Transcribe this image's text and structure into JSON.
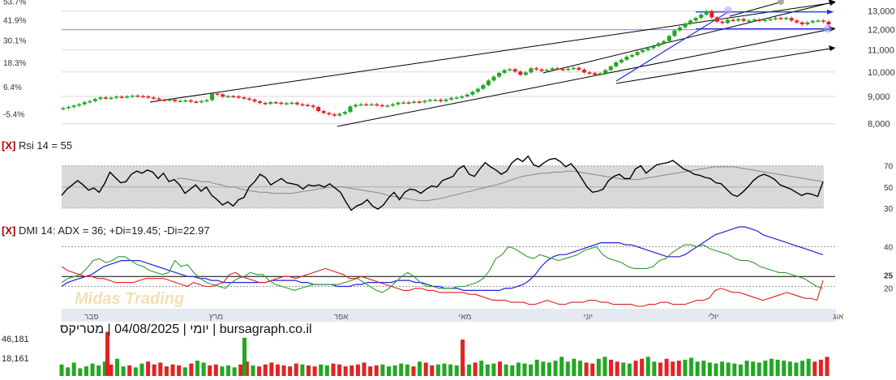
{
  "caption": "יומי | 04/08/2025 | מטריקס | bursagraph.co.il",
  "watermark": "Midas Trading",
  "rsi_panel": {
    "close": "[X]",
    "label": "Rsi 14 = 55"
  },
  "dmi_panel": {
    "close": "[X]",
    "label": "DMI 14: ADX = 36; +Di=19.45; -Di=22.97"
  },
  "volume_labels": [
    "46,181",
    "18,161"
  ],
  "colors": {
    "up": "#22a722",
    "down": "#e32222",
    "adx": "#2222dd",
    "plus_di": "#2a9d2a",
    "minus_di": "#e01e1e",
    "rsi": "#000000",
    "rsi_avg": "#888888",
    "trend": "#000000",
    "channel": "#2233dd"
  },
  "chart_data": [
    {
      "type": "candlestick",
      "title": "",
      "ylabel": "",
      "y_scale": "log",
      "ylim": [
        7800,
        13400
      ],
      "y_ticks_right": [
        "13,000",
        "12,000",
        "11,000",
        "10,000",
        "9,000",
        "8,000"
      ],
      "y_ticks_left": [
        "53.7%",
        "41.9%",
        "30.1%",
        "18.3%",
        "6.4%",
        "-5.4%"
      ],
      "x_labels": [
        "פבר",
        "מרץ",
        "אפר",
        "מאי",
        "יוני",
        "יולי",
        "אוג"
      ],
      "grid": true,
      "closes": [
        8560,
        8600,
        8650,
        8700,
        8780,
        8820,
        8900,
        8960,
        8920,
        8950,
        8990,
        8970,
        9000,
        9030,
        9010,
        9000,
        8960,
        8920,
        8870,
        8860,
        8880,
        8820,
        8830,
        8850,
        8800,
        8780,
        8820,
        8860,
        9110,
        9080,
        8990,
        9010,
        9000,
        8960,
        8920,
        8880,
        8810,
        8750,
        8720,
        8780,
        8760,
        8720,
        8740,
        8760,
        8700,
        8680,
        8650,
        8600,
        8450,
        8380,
        8330,
        8290,
        8350,
        8420,
        8620,
        8680,
        8700,
        8690,
        8700,
        8670,
        8640,
        8650,
        8700,
        8760,
        8770,
        8760,
        8800,
        8780,
        8830,
        8870,
        8870,
        8820,
        8880,
        8940,
        8960,
        9000,
        9070,
        9180,
        9300,
        9450,
        9640,
        9800,
        9960,
        10080,
        10120,
        10020,
        9880,
        9980,
        10160,
        10110,
        10040,
        10090,
        10160,
        10130,
        10090,
        10140,
        10180,
        10100,
        9980,
        9950,
        9880,
        9940,
        10080,
        10240,
        10420,
        10540,
        10680,
        10760,
        10900,
        10990,
        11080,
        11180,
        11320,
        11420,
        11680,
        11960,
        12120,
        12320,
        12480,
        12620,
        12800,
        13000,
        12650,
        12420,
        12350,
        12520,
        12480,
        12560,
        12460,
        12480,
        12540,
        12460,
        12520,
        12560,
        12620,
        12580,
        12620,
        12480,
        12380,
        12280,
        12380,
        12460,
        12480,
        12420,
        12280
      ],
      "trendlines": [
        {
          "from": [
            "פבר",
            8950
          ],
          "to": [
            "אוג",
            13450
          ]
        },
        {
          "from": [
            "אפר",
            7950
          ],
          "to": [
            "אוג",
            12500
          ]
        },
        {
          "from": [
            "יוני",
            10350
          ],
          "to": [
            "אוג",
            13800
          ]
        },
        {
          "from": [
            "יוני",
            9800
          ],
          "to": [
            "אוג",
            11450
          ]
        }
      ],
      "channel": {
        "upper": 12950,
        "lower": 12050
      }
    },
    {
      "type": "line",
      "title": "Rsi 14 = 55",
      "ylim": [
        20,
        85
      ],
      "y_ticks": [
        70,
        50,
        30
      ],
      "series": [
        {
          "name": "Rsi 14",
          "values": [
            42,
            48,
            52,
            56,
            52,
            47,
            49,
            45,
            53,
            64,
            59,
            54,
            55,
            62,
            65,
            63,
            66,
            64,
            58,
            63,
            55,
            57,
            52,
            44,
            48,
            52,
            46,
            50,
            42,
            38,
            33,
            36,
            32,
            38,
            40,
            50,
            55,
            62,
            59,
            52,
            55,
            58,
            54,
            53,
            52,
            48,
            52,
            51,
            52,
            50,
            53,
            49,
            45,
            36,
            28,
            32,
            34,
            38,
            32,
            29,
            33,
            40,
            45,
            38,
            45,
            48,
            47,
            44,
            48,
            51,
            50,
            56,
            58,
            60,
            67,
            70,
            62,
            60,
            67,
            73,
            69,
            66,
            62,
            65,
            73,
            77,
            74,
            79,
            71,
            69,
            73,
            76,
            77,
            74,
            69,
            72,
            66,
            58,
            50,
            45,
            46,
            48,
            56,
            60,
            62,
            58,
            58,
            67,
            70,
            63,
            67,
            71,
            72,
            73,
            75,
            71,
            67,
            65,
            62,
            61,
            59,
            58,
            54,
            53,
            48,
            43,
            41,
            45,
            50,
            56,
            60,
            62,
            60,
            57,
            52,
            50,
            48,
            45,
            42,
            44,
            43,
            41,
            55
          ]
        },
        {
          "name": "Avg",
          "values": [
            null,
            null,
            null,
            null,
            null,
            null,
            null,
            null,
            null,
            null,
            null,
            null,
            null,
            null,
            null,
            null,
            null,
            null,
            58,
            58,
            57,
            56,
            55,
            55,
            53,
            52,
            50,
            50,
            48,
            47,
            46,
            45,
            45,
            44,
            44,
            44,
            44,
            45,
            46,
            47,
            48,
            49,
            50,
            50,
            50,
            49,
            48,
            47,
            46,
            45,
            44,
            42,
            41,
            40,
            39,
            38,
            37,
            37,
            38,
            39,
            40,
            42,
            43,
            45,
            46,
            48,
            49,
            51,
            52,
            54,
            56,
            58,
            60,
            61,
            62,
            63,
            63,
            64,
            64,
            65,
            65,
            64,
            63,
            62,
            61,
            60,
            59,
            58,
            57,
            57,
            57,
            58,
            59,
            60,
            61,
            62,
            63,
            64,
            65,
            66,
            67,
            68,
            69,
            69,
            69,
            69,
            68,
            67,
            66,
            65,
            64,
            63,
            62,
            61,
            60,
            59,
            58,
            57,
            56,
            55
          ]
        }
      ]
    },
    {
      "type": "line",
      "title": "DMI 14: ADX = 36; +Di=19.45; -Di=22.97",
      "ylim": [
        10,
        50
      ],
      "y_ticks": [
        40,
        25,
        20
      ],
      "series": [
        {
          "name": "ADX",
          "values": [
            20,
            22,
            23,
            24,
            25,
            26,
            28,
            30,
            31,
            32,
            33,
            33,
            33,
            33,
            32,
            31,
            30,
            29,
            28,
            27,
            26,
            25,
            25,
            24,
            24,
            23,
            23,
            22,
            22,
            22,
            22,
            22,
            22,
            22,
            22,
            23,
            23,
            23,
            23,
            23,
            22,
            22,
            21,
            21,
            21,
            21,
            20,
            20,
            20,
            21,
            21,
            22,
            22,
            22,
            22,
            22,
            23,
            23,
            23,
            22,
            22,
            21,
            20,
            20,
            19,
            19,
            19,
            18,
            18,
            18,
            18,
            18,
            18,
            18,
            19,
            19,
            20,
            21,
            23,
            26,
            30,
            33,
            35,
            36,
            36,
            37,
            38,
            39,
            40,
            41,
            42,
            42,
            42,
            42,
            41,
            41,
            40,
            39,
            38,
            37,
            36,
            35,
            35,
            35,
            36,
            38,
            40,
            42,
            44,
            46,
            47,
            48,
            49,
            50,
            50,
            49,
            48,
            46,
            45,
            44,
            43,
            42,
            41,
            40,
            39,
            38,
            37,
            36
          ]
        },
        {
          "name": "+Di",
          "values": [
            22,
            24,
            25,
            26,
            29,
            33,
            34,
            32,
            33,
            35,
            35,
            33,
            31,
            30,
            28,
            27,
            26,
            27,
            33,
            30,
            31,
            27,
            24,
            22,
            21,
            20,
            19,
            22,
            24,
            25,
            27,
            26,
            26,
            23,
            21,
            20,
            19,
            18,
            19,
            20,
            21,
            21,
            21,
            21,
            21,
            22,
            23,
            24,
            22,
            20,
            18,
            17,
            19,
            22,
            25,
            27,
            25,
            22,
            20,
            20,
            19,
            19,
            19,
            20,
            20,
            21,
            22,
            24,
            28,
            34,
            36,
            40,
            39,
            37,
            35,
            34,
            36,
            35,
            34,
            33,
            34,
            35,
            36,
            38,
            39,
            40,
            36,
            34,
            33,
            32,
            30,
            29,
            29,
            29,
            30,
            33,
            34,
            37,
            39,
            41,
            41,
            40,
            41,
            39,
            38,
            37,
            36,
            34,
            33,
            33,
            32,
            30,
            29,
            28,
            27,
            27,
            26,
            25,
            24,
            22,
            20,
            19
          ]
        },
        {
          "name": "-Di",
          "values": [
            30,
            28,
            27,
            26,
            25,
            25,
            24,
            24,
            23,
            22,
            22,
            22,
            22,
            23,
            24,
            24,
            24,
            24,
            23,
            22,
            21,
            20,
            22,
            21,
            20,
            20,
            21,
            22,
            26,
            27,
            25,
            24,
            23,
            22,
            22,
            23,
            24,
            25,
            25,
            24,
            25,
            26,
            27,
            28,
            29,
            28,
            27,
            26,
            24,
            24,
            25,
            24,
            23,
            22,
            21,
            20,
            19,
            18,
            18,
            19,
            19,
            18,
            18,
            17,
            17,
            17,
            17,
            17,
            16,
            16,
            15,
            14,
            13,
            13,
            13,
            12,
            12,
            12,
            11,
            11,
            12,
            13,
            12,
            11,
            11,
            12,
            12,
            12,
            13,
            13,
            12,
            12,
            11,
            11,
            11,
            11,
            10,
            10,
            11,
            11,
            12,
            12,
            11,
            11,
            11,
            12,
            13,
            13,
            14,
            18,
            19,
            18,
            17,
            17,
            16,
            15,
            14,
            13,
            14,
            15,
            16,
            17,
            16,
            15,
            14,
            14,
            13,
            23
          ]
        }
      ]
    },
    {
      "type": "bar",
      "title": "",
      "ylim": [
        0,
        50000
      ],
      "y_ticks": [
        "46,181",
        "18,161"
      ],
      "values": [
        12000,
        9000,
        14000,
        8000,
        10000,
        13000,
        11000,
        15000,
        12000,
        18000,
        10000,
        11000,
        9000,
        13000,
        15000,
        12000,
        14000,
        10000,
        12000,
        11000,
        9000,
        13000,
        16000,
        14000,
        11000,
        12000,
        10000,
        11000,
        9000,
        12000,
        15000,
        11000,
        10000,
        12000,
        14000,
        12000,
        11000,
        10000,
        13000,
        12000,
        11000,
        10000,
        12000,
        11000,
        13000,
        12000,
        10000,
        11000,
        12000,
        14000,
        10000,
        11000,
        12000,
        10000,
        11000,
        13000,
        12000,
        10000,
        15000,
        14000,
        11000,
        12000,
        13000,
        12000,
        11000,
        10000,
        12000,
        14000,
        16000,
        12000,
        13000,
        15000,
        12000,
        11000,
        14000,
        13000,
        12000,
        17000,
        15000,
        14000,
        16000,
        20000,
        15000,
        18000,
        16000,
        14000,
        13000,
        18000,
        20000,
        17000,
        15000,
        14000,
        13000,
        16000,
        18000,
        20000,
        15000,
        14000,
        18000,
        15000,
        16000,
        17000,
        19000,
        15000,
        16000,
        14000,
        13000,
        15000,
        14000,
        13000,
        12000,
        16000,
        15000,
        14000,
        16000,
        18000,
        17000,
        16000,
        15000,
        14000,
        16000,
        18000,
        15000,
        17000,
        20000
      ],
      "colors_note": ""
    }
  ]
}
